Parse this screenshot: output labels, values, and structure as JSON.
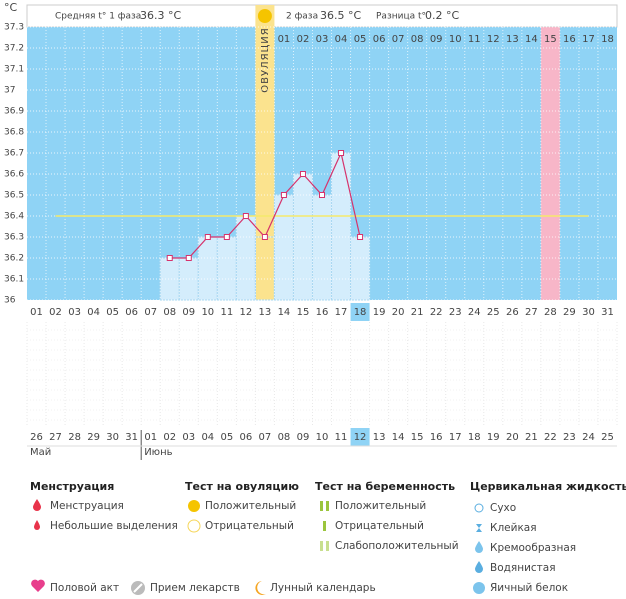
{
  "chart_data": {
    "type": "line",
    "y_unit": "°C",
    "categories": [
      "01",
      "02",
      "03",
      "04",
      "05",
      "06",
      "07",
      "08",
      "09",
      "10",
      "11",
      "12",
      "13",
      "14",
      "15",
      "16",
      "17",
      "18",
      "19",
      "20",
      "21",
      "22",
      "23",
      "24",
      "25",
      "26",
      "27",
      "28",
      "29",
      "30",
      "31"
    ],
    "series": [
      {
        "name": "t°",
        "color": "#d6336c",
        "bar_color": "#d4edfc",
        "values": [
          null,
          null,
          null,
          null,
          null,
          null,
          null,
          36.2,
          36.2,
          36.3,
          36.3,
          36.4,
          36.3,
          36.5,
          36.6,
          36.5,
          36.7,
          36.3,
          null,
          null,
          null,
          null,
          null,
          null,
          null,
          null,
          null,
          null,
          null,
          null,
          null
        ]
      }
    ],
    "ylim": [
      36,
      37.3
    ],
    "yticks": [
      36,
      36.1,
      36.2,
      36.3,
      36.4,
      36.5,
      36.6,
      36.7,
      36.8,
      36.9,
      37,
      37.1,
      37.2,
      37.3
    ],
    "grid": true,
    "cover_line": {
      "value": 36.4,
      "color": "#f5e96b"
    },
    "ovulation": {
      "category": "13",
      "label": "ОВУЛЯЦИЯ",
      "color": "#fbe38e"
    },
    "marked_day": {
      "category": "28",
      "color": "#f7b6c8"
    },
    "today": "18",
    "phase2": {
      "start": "14",
      "days": [
        "01",
        "02",
        "03",
        "04",
        "05",
        "06",
        "07",
        "08",
        "09",
        "10",
        "11",
        "12",
        "13",
        "14",
        "15",
        "16",
        "17",
        "18"
      ]
    },
    "header": {
      "phase1_label": "Средняя t° 1 фаза",
      "phase1_value": "36.3 °C",
      "phase2_label": "2 фаза",
      "phase2_value": "36.5 °C",
      "diff_label": "Разница t°",
      "diff_value": "0.2 °C"
    }
  },
  "calendar": {
    "days": [
      "26",
      "27",
      "28",
      "29",
      "30",
      "31",
      "01",
      "02",
      "03",
      "04",
      "05",
      "06",
      "07",
      "08",
      "09",
      "10",
      "11",
      "12",
      "13",
      "14",
      "15",
      "16",
      "17",
      "18",
      "19",
      "20",
      "21",
      "22",
      "23",
      "24",
      "25"
    ],
    "weekend": [
      "30",
      "31",
      "06",
      "07",
      "13",
      "14",
      "20",
      "21"
    ],
    "weekend_color": "#e0245e",
    "today": "12",
    "months": [
      {
        "label": "Май",
        "start": "26"
      },
      {
        "label": "Июнь",
        "start": "01"
      }
    ]
  },
  "legend": {
    "sections": [
      {
        "title": "Менструация",
        "items": [
          "Менструация",
          "Небольшие выделения"
        ]
      },
      {
        "title": "Тест на овуляцию",
        "items": [
          "Положительный",
          "Отрицательный"
        ]
      },
      {
        "title": "Тест на беременность",
        "items": [
          "Положительный",
          "Отрицательный",
          "Слабоположительный"
        ]
      },
      {
        "title": "Цервикальная жидкость",
        "items": [
          "Сухо",
          "Клейкая",
          "Кремообразная",
          "Водянистая",
          "Яичный белок"
        ]
      }
    ],
    "extra": [
      "Половой акт",
      "Прием лекарств",
      "Лунный календарь"
    ]
  }
}
